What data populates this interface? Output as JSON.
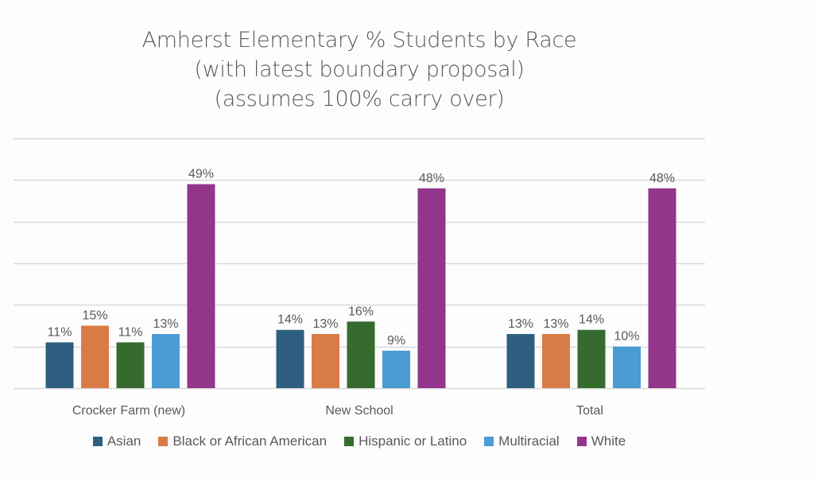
{
  "chart_data": {
    "type": "bar",
    "title_lines": [
      "Amherst Elementary % Students by Race",
      "(with latest boundary proposal)",
      "(assumes 100% carry over)"
    ],
    "categories": [
      "Crocker Farm (new)",
      "New School",
      "Total"
    ],
    "series": [
      {
        "name": "Asian",
        "color": "#2E5F80",
        "values": [
          11,
          14,
          13
        ],
        "labels": [
          "11%",
          "14%",
          "13%"
        ]
      },
      {
        "name": "Black or African American",
        "color": "#D97B44",
        "values": [
          15,
          13,
          13
        ],
        "labels": [
          "15%",
          "13%",
          "13%"
        ]
      },
      {
        "name": "Hispanic or Latino",
        "color": "#356B2F",
        "values": [
          11,
          16,
          14
        ],
        "labels": [
          "11%",
          "16%",
          "14%"
        ]
      },
      {
        "name": "Multiracial",
        "color": "#4B9CD3",
        "values": [
          13,
          9,
          10
        ],
        "labels": [
          "13%",
          "9%",
          "10%"
        ]
      },
      {
        "name": "White",
        "color": "#93358A",
        "values": [
          49,
          48,
          48
        ],
        "labels": [
          "49%",
          "48%",
          "48%"
        ]
      }
    ],
    "xlabel": "",
    "ylabel": "",
    "ylim": [
      0,
      60
    ],
    "ytick_step": 10,
    "y_axis_labels_visible": false,
    "grid": true,
    "legend_position": "bottom"
  }
}
